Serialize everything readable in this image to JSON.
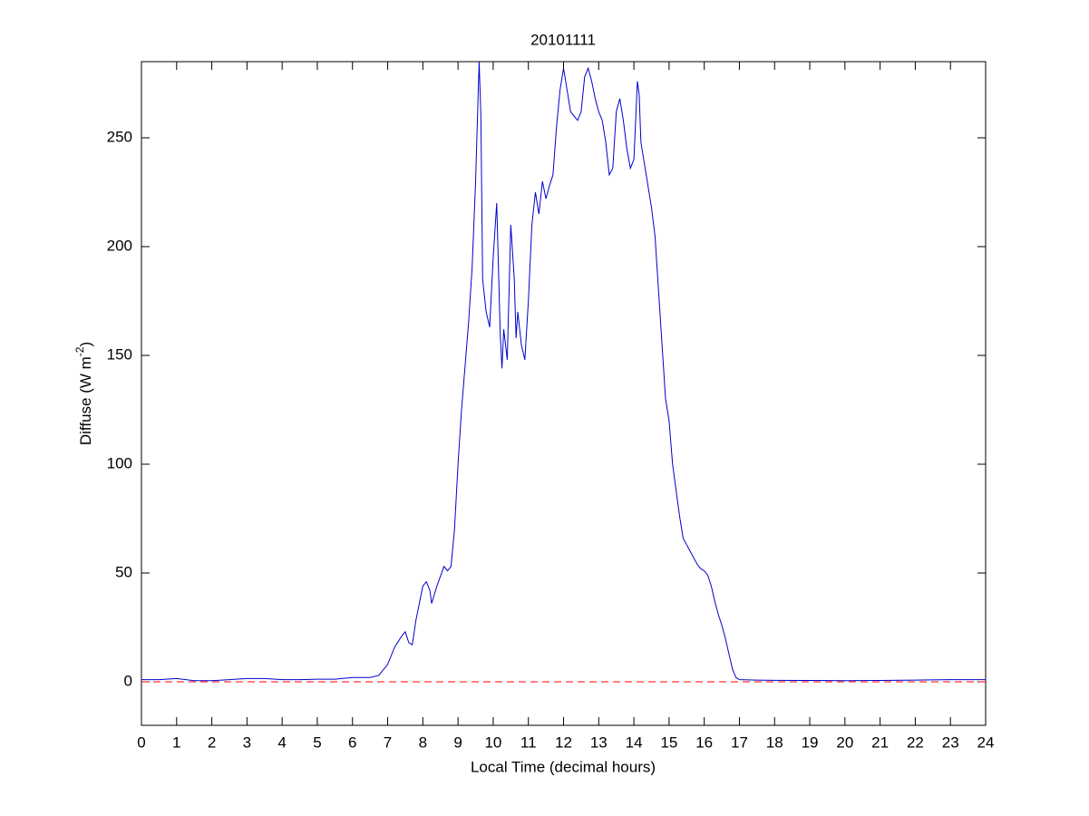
{
  "chart_data": {
    "type": "line",
    "title": "20101111",
    "xlabel": "Local Time (decimal hours)",
    "ylabel_parts": [
      "Diffuse (W m",
      "-2",
      ")"
    ],
    "color": "#0000cc",
    "reference_line": {
      "value": 0,
      "color": "#ff0000",
      "style": "dashed"
    },
    "xlim": [
      0,
      24
    ],
    "ylim": [
      -20,
      285
    ],
    "xticks": [
      0,
      1,
      2,
      3,
      4,
      5,
      6,
      7,
      8,
      9,
      10,
      11,
      12,
      13,
      14,
      15,
      16,
      17,
      18,
      19,
      20,
      21,
      22,
      23,
      24
    ],
    "yticks": [
      0,
      50,
      100,
      150,
      200,
      250
    ],
    "grid": false,
    "x": [
      0,
      0.5,
      1,
      1.5,
      2,
      2.5,
      3,
      3.5,
      4,
      4.5,
      5,
      5.5,
      6,
      6.5,
      6.75,
      7,
      7.2,
      7.4,
      7.5,
      7.6,
      7.7,
      7.8,
      8,
      8.1,
      8.2,
      8.25,
      8.4,
      8.6,
      8.7,
      8.8,
      8.9,
      9,
      9.1,
      9.2,
      9.3,
      9.4,
      9.5,
      9.6,
      9.65,
      9.7,
      9.8,
      9.9,
      10,
      10.1,
      10.15,
      10.2,
      10.25,
      10.3,
      10.4,
      10.5,
      10.6,
      10.65,
      10.7,
      10.8,
      10.9,
      11,
      11.1,
      11.2,
      11.3,
      11.4,
      11.5,
      11.6,
      11.7,
      11.8,
      11.9,
      12,
      12.1,
      12.2,
      12.3,
      12.4,
      12.5,
      12.6,
      12.7,
      12.8,
      12.9,
      13,
      13.1,
      13.2,
      13.3,
      13.4,
      13.5,
      13.6,
      13.7,
      13.8,
      13.9,
      14,
      14.1,
      14.15,
      14.2,
      14.3,
      14.4,
      14.5,
      14.6,
      14.7,
      14.8,
      14.9,
      15,
      15.1,
      15.2,
      15.3,
      15.4,
      15.5,
      15.6,
      15.7,
      15.8,
      15.9,
      16,
      16.1,
      16.2,
      16.3,
      16.4,
      16.5,
      16.6,
      16.7,
      16.8,
      16.9,
      17,
      17.5,
      18,
      19,
      20,
      21,
      22,
      23,
      24
    ],
    "values": [
      1,
      1,
      1.5,
      0.5,
      0.5,
      1,
      1.5,
      1.5,
      1,
      1,
      1.2,
      1.2,
      2,
      2,
      3,
      8,
      16,
      21,
      23,
      18,
      17,
      28,
      44,
      46,
      42,
      36,
      44,
      53,
      51,
      53,
      70,
      100,
      125,
      145,
      165,
      190,
      230,
      285,
      260,
      185,
      170,
      163,
      195,
      220,
      190,
      160,
      144,
      162,
      148,
      210,
      185,
      158,
      170,
      155,
      148,
      175,
      210,
      225,
      215,
      230,
      222,
      228,
      233,
      255,
      272,
      282,
      272,
      262,
      260,
      258,
      262,
      278,
      282,
      276,
      268,
      262,
      258,
      248,
      233,
      236,
      262,
      268,
      258,
      245,
      236,
      240,
      276,
      270,
      248,
      238,
      228,
      218,
      205,
      180,
      155,
      130,
      120,
      100,
      88,
      76,
      66,
      63,
      60,
      57,
      54,
      52,
      51,
      49,
      44,
      37,
      31,
      26,
      20,
      13,
      6,
      2,
      1,
      0.8,
      0.7,
      0.6,
      0.5,
      0.6,
      0.8,
      1,
      1
    ]
  }
}
